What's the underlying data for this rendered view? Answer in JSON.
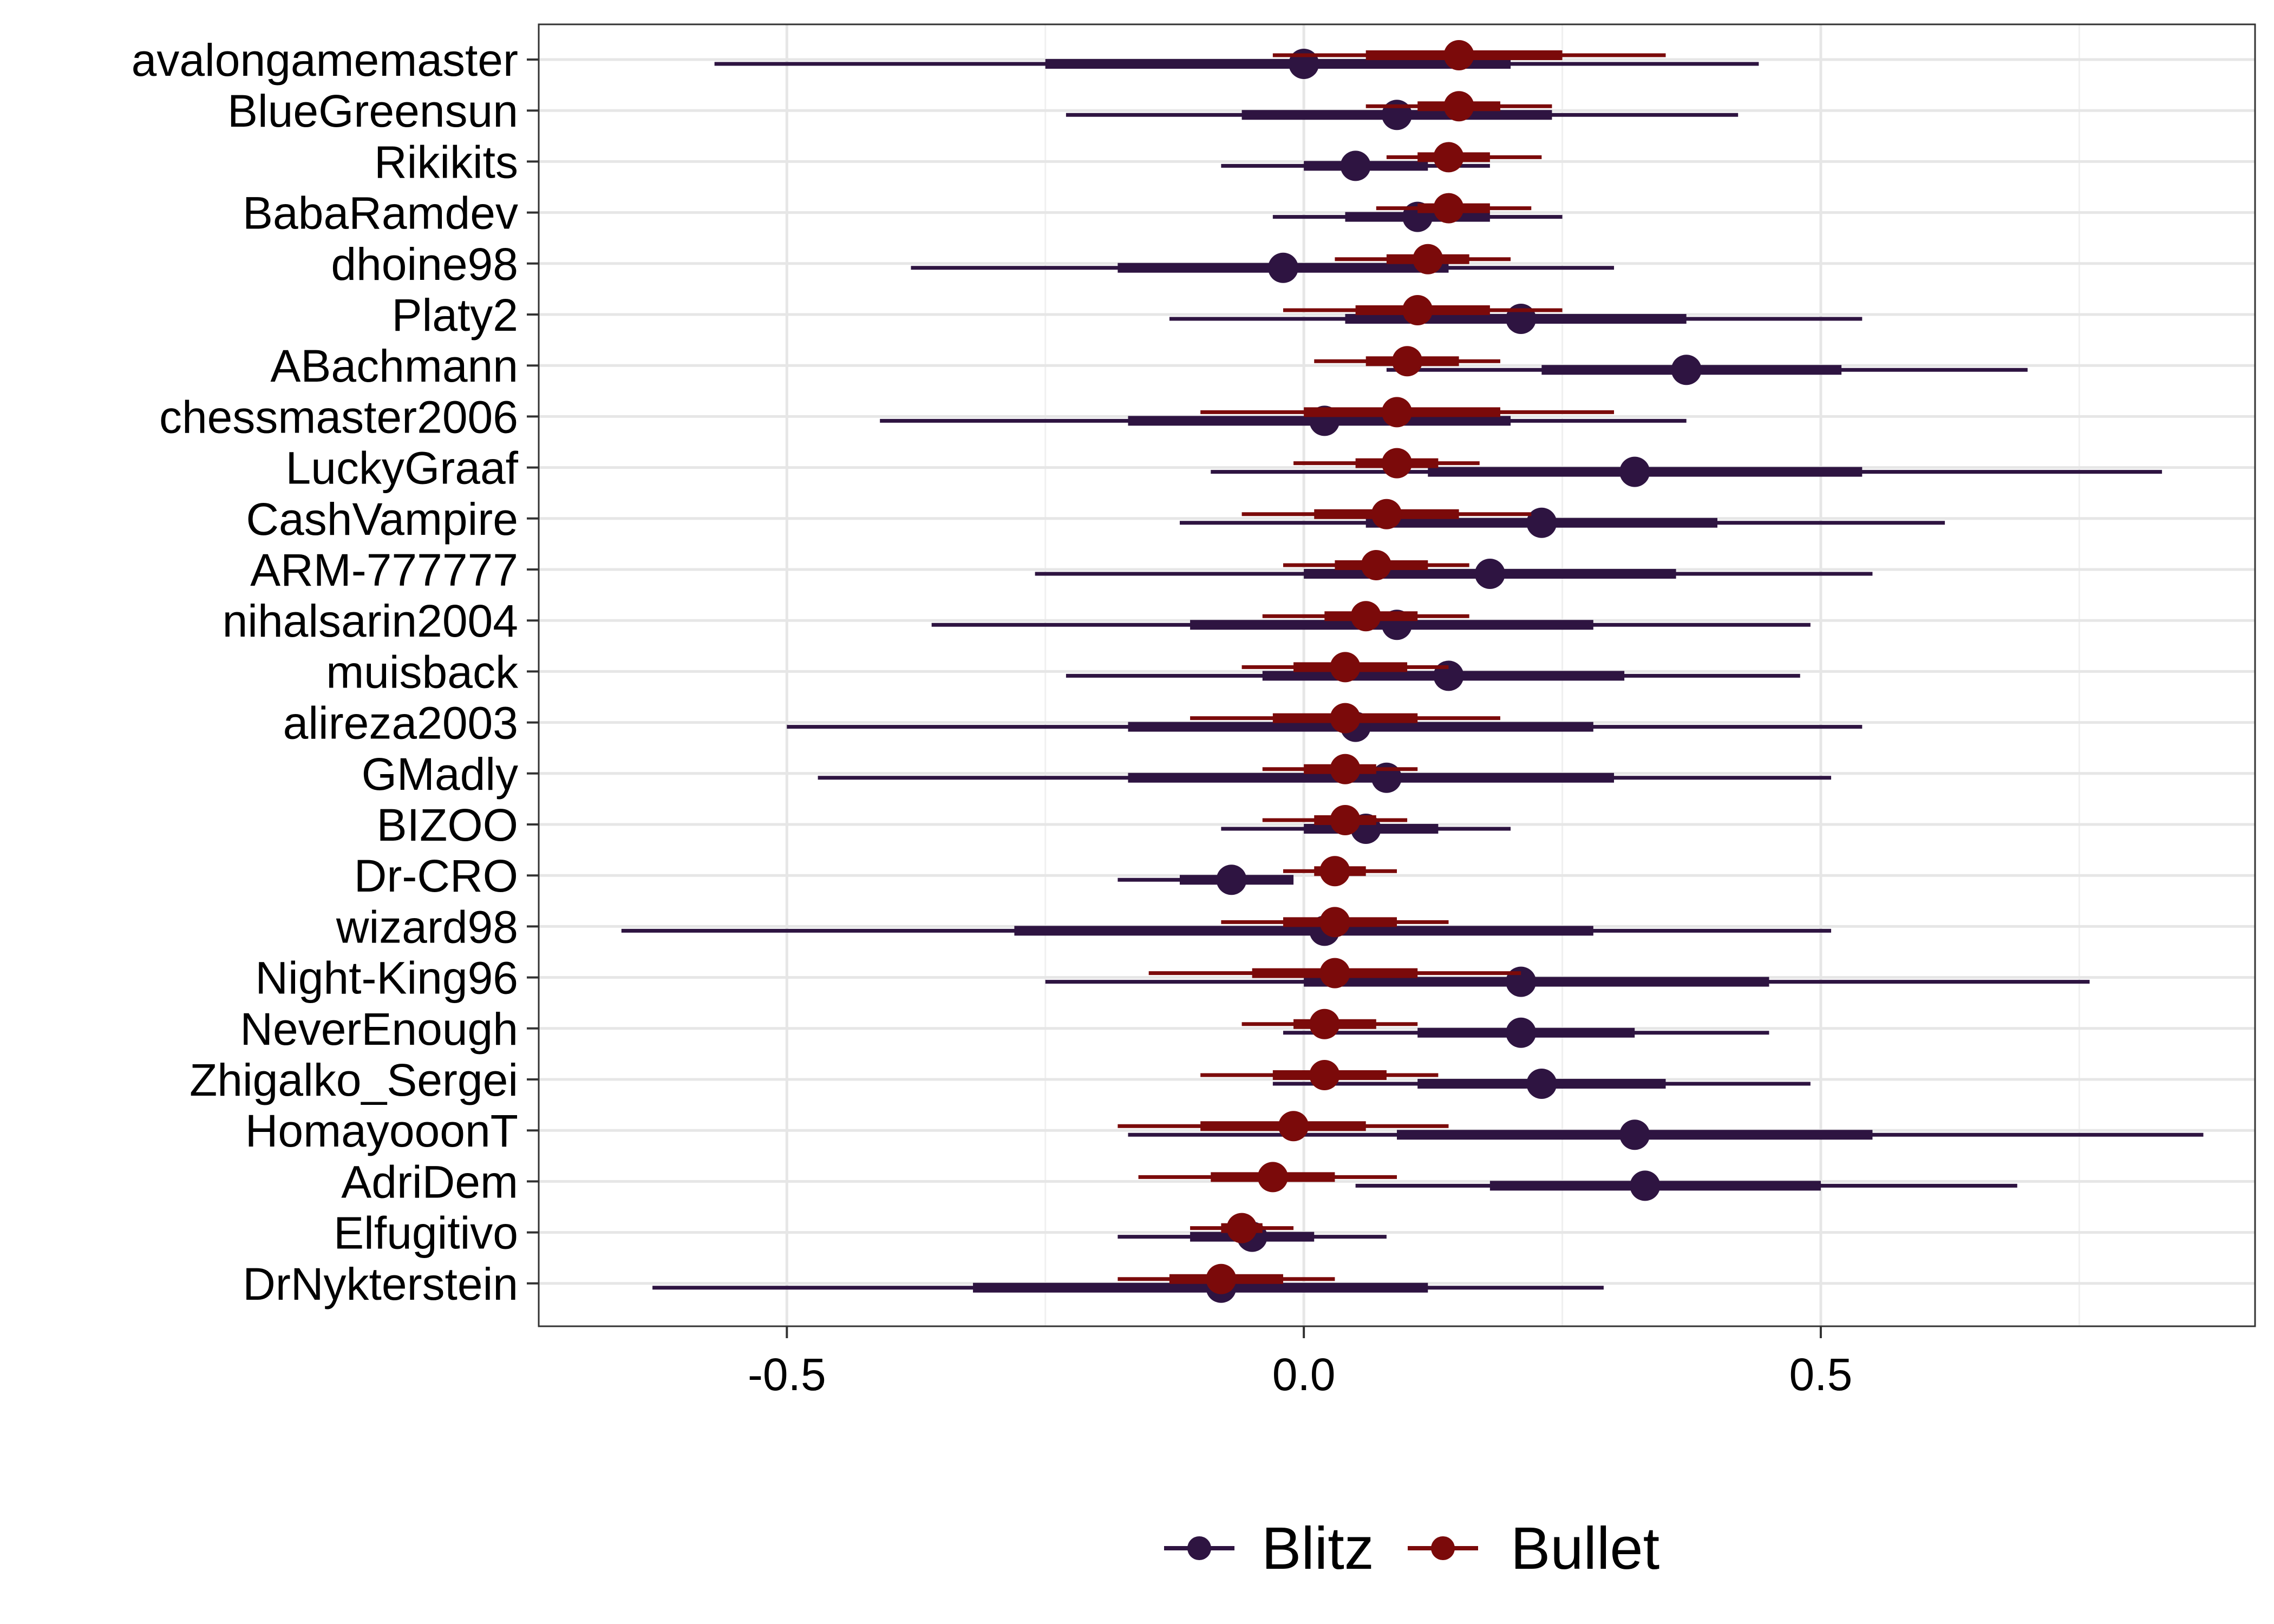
{
  "chart_data": {
    "type": "forest",
    "title": "",
    "xlabel": "",
    "ylabel": "",
    "xlim": [
      -0.74,
      0.92
    ],
    "xticks": [
      -0.5,
      0.0,
      0.5
    ],
    "xtick_labels": [
      "-0.5",
      "0.0",
      "0.5"
    ],
    "grid": true,
    "legend_position": "bottom",
    "categories": [
      "avalongamemaster",
      "BlueGreensun",
      "Rikikits",
      "BabaRamdev",
      "dhoine98",
      "Platy2",
      "ABachmann",
      "chessmaster2006",
      "LuckyGraaf",
      "CashVampire",
      "ARM-777777",
      "nihalsarin2004",
      "muisback",
      "alireza2003",
      "GMadly",
      "BIZOO",
      "Dr-CRO",
      "wizard98",
      "Night-King96",
      "NeverEnough",
      "Zhigalko_Sergei",
      "HomayooonT",
      "AdriDem",
      "Elfugitivo",
      "DrNykterstein"
    ],
    "series": [
      {
        "name": "Blitz",
        "color": "#2e1441",
        "estimate": [
          0.0,
          0.09,
          0.05,
          0.11,
          -0.02,
          0.21,
          0.37,
          0.02,
          0.32,
          0.23,
          0.18,
          0.09,
          0.14,
          0.05,
          0.08,
          0.06,
          -0.07,
          0.02,
          0.21,
          0.21,
          0.23,
          0.32,
          0.33,
          -0.05,
          -0.08
        ],
        "inner_low": [
          -0.25,
          -0.06,
          0.0,
          0.04,
          -0.18,
          0.04,
          0.23,
          -0.17,
          0.12,
          0.06,
          0.0,
          -0.11,
          -0.04,
          -0.17,
          -0.17,
          0.0,
          -0.12,
          -0.28,
          0.0,
          0.11,
          0.11,
          0.09,
          0.18,
          -0.11,
          -0.32
        ],
        "inner_high": [
          0.2,
          0.24,
          0.12,
          0.18,
          0.14,
          0.37,
          0.52,
          0.2,
          0.54,
          0.4,
          0.36,
          0.28,
          0.31,
          0.28,
          0.3,
          0.13,
          -0.01,
          0.28,
          0.45,
          0.32,
          0.35,
          0.55,
          0.5,
          0.01,
          0.12
        ],
        "outer_low": [
          -0.57,
          -0.23,
          -0.08,
          -0.03,
          -0.38,
          -0.13,
          0.08,
          -0.41,
          -0.09,
          -0.12,
          -0.26,
          -0.36,
          -0.23,
          -0.5,
          -0.47,
          -0.08,
          -0.18,
          -0.66,
          -0.25,
          -0.02,
          -0.03,
          -0.17,
          0.05,
          -0.18,
          -0.63
        ],
        "outer_high": [
          0.44,
          0.42,
          0.18,
          0.25,
          0.3,
          0.54,
          0.7,
          0.37,
          0.83,
          0.62,
          0.55,
          0.49,
          0.48,
          0.54,
          0.51,
          0.2,
          -0.01,
          0.51,
          0.76,
          0.45,
          0.49,
          0.87,
          0.69,
          0.08,
          0.29
        ]
      },
      {
        "name": "Bullet",
        "color": "#7b0a0a",
        "estimate": [
          0.15,
          0.15,
          0.14,
          0.14,
          0.12,
          0.11,
          0.1,
          0.09,
          0.09,
          0.08,
          0.07,
          0.06,
          0.04,
          0.04,
          0.04,
          0.04,
          0.03,
          0.03,
          0.03,
          0.02,
          0.02,
          -0.01,
          -0.03,
          -0.06,
          -0.08
        ],
        "inner_low": [
          0.06,
          0.11,
          0.11,
          0.11,
          0.08,
          0.05,
          0.06,
          0.0,
          0.05,
          0.01,
          0.03,
          0.02,
          -0.01,
          -0.03,
          0.0,
          0.01,
          0.01,
          -0.02,
          -0.05,
          -0.01,
          -0.03,
          -0.1,
          -0.09,
          -0.08,
          -0.13
        ],
        "inner_high": [
          0.25,
          0.19,
          0.18,
          0.18,
          0.16,
          0.18,
          0.15,
          0.19,
          0.13,
          0.15,
          0.12,
          0.11,
          0.1,
          0.11,
          0.07,
          0.07,
          0.06,
          0.09,
          0.11,
          0.07,
          0.08,
          0.06,
          0.03,
          -0.04,
          -0.02
        ],
        "outer_low": [
          -0.03,
          0.06,
          0.08,
          0.07,
          0.03,
          -0.02,
          0.01,
          -0.1,
          -0.01,
          -0.06,
          -0.02,
          -0.04,
          -0.06,
          -0.11,
          -0.04,
          -0.04,
          -0.02,
          -0.08,
          -0.15,
          -0.06,
          -0.1,
          -0.18,
          -0.16,
          -0.11,
          -0.18
        ],
        "outer_high": [
          0.35,
          0.24,
          0.23,
          0.22,
          0.2,
          0.25,
          0.19,
          0.3,
          0.17,
          0.22,
          0.16,
          0.16,
          0.14,
          0.19,
          0.11,
          0.1,
          0.09,
          0.14,
          0.21,
          0.11,
          0.13,
          0.14,
          0.09,
          -0.01,
          0.03
        ]
      }
    ]
  }
}
